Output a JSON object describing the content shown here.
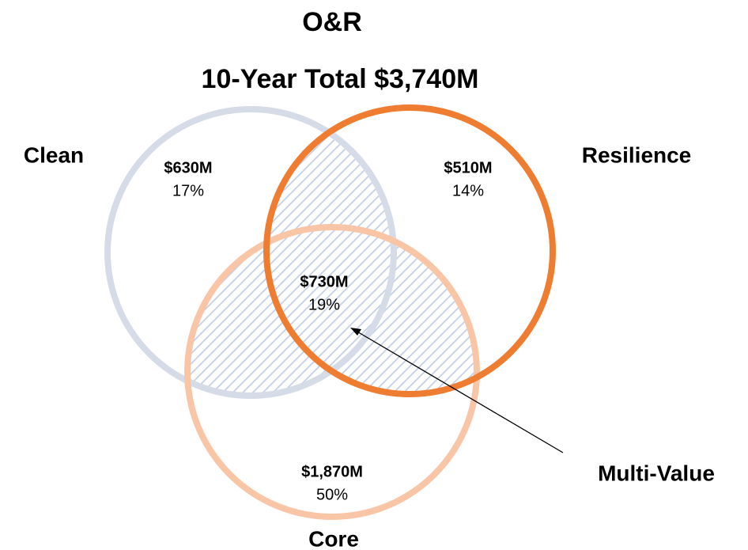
{
  "title": "O&R",
  "subtitle": "10-Year Total $3,740M",
  "sets": [
    {
      "label": "Clean"
    },
    {
      "label": "Resilience"
    },
    {
      "label": "Core"
    }
  ],
  "regions": [
    {
      "amount": "$630M",
      "share": "17%"
    },
    {
      "amount": "$510M",
      "share": "14%"
    },
    {
      "amount": "$730M",
      "share": "19%"
    },
    {
      "amount": "$1,870M",
      "share": "50%"
    }
  ],
  "annotation": "Multi-Value"
}
